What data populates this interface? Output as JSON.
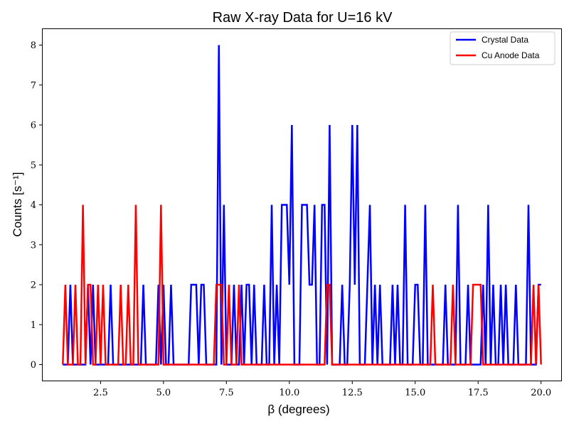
{
  "chart_data": {
    "type": "line",
    "title": "Raw X-ray Data for U=16 kV",
    "xlabel": "β (degrees)",
    "ylabel": "Counts [s⁻¹]",
    "xlim": [
      0.2,
      20.8
    ],
    "ylim": [
      -0.4,
      8.4
    ],
    "xticks": [
      2.5,
      5.0,
      7.5,
      10.0,
      12.5,
      15.0,
      17.5,
      20.0
    ],
    "xtick_labels": [
      "2.5",
      "5.0",
      "7.5",
      "10.0",
      "12.5",
      "15.0",
      "17.5",
      "20.0"
    ],
    "yticks": [
      0,
      1,
      2,
      3,
      4,
      5,
      6,
      7,
      8
    ],
    "ytick_labels": [
      "0",
      "1",
      "2",
      "3",
      "4",
      "5",
      "6",
      "7",
      "8"
    ],
    "grid": false,
    "legend_position": "top-right",
    "series": [
      {
        "name": "Crystal Data",
        "color": "#0000ff",
        "x": [
          1.0,
          1.1,
          1.2,
          1.3,
          1.4,
          1.5,
          1.6,
          1.7,
          1.8,
          1.9,
          2.0,
          2.1,
          2.2,
          2.3,
          2.4,
          2.5,
          2.6,
          2.7,
          2.8,
          2.9,
          3.0,
          3.1,
          3.2,
          3.3,
          3.4,
          3.5,
          3.6,
          3.7,
          3.8,
          3.9,
          4.0,
          4.1,
          4.2,
          4.3,
          4.4,
          4.5,
          4.6,
          4.7,
          4.8,
          4.9,
          5.0,
          5.1,
          5.2,
          5.3,
          5.4,
          5.5,
          5.6,
          5.7,
          5.8,
          5.9,
          6.0,
          6.1,
          6.2,
          6.3,
          6.4,
          6.5,
          6.6,
          6.7,
          6.8,
          6.9,
          7.0,
          7.1,
          7.2,
          7.3,
          7.4,
          7.5,
          7.6,
          7.7,
          7.8,
          7.9,
          8.0,
          8.1,
          8.2,
          8.3,
          8.4,
          8.5,
          8.6,
          8.7,
          8.8,
          8.9,
          9.0,
          9.1,
          9.2,
          9.3,
          9.4,
          9.5,
          9.6,
          9.7,
          9.8,
          9.9,
          10.0,
          10.1,
          10.2,
          10.3,
          10.4,
          10.5,
          10.6,
          10.7,
          10.8,
          10.9,
          11.0,
          11.1,
          11.2,
          11.3,
          11.4,
          11.5,
          11.6,
          11.7,
          11.8,
          11.9,
          12.0,
          12.1,
          12.2,
          12.3,
          12.4,
          12.5,
          12.6,
          12.7,
          12.8,
          12.9,
          13.0,
          13.1,
          13.2,
          13.3,
          13.4,
          13.5,
          13.6,
          13.7,
          13.8,
          13.9,
          14.0,
          14.1,
          14.2,
          14.3,
          14.4,
          14.5,
          14.6,
          14.7,
          14.8,
          14.9,
          15.0,
          15.1,
          15.2,
          15.3,
          15.4,
          15.5,
          15.6,
          15.7,
          15.8,
          15.9,
          16.0,
          16.1,
          16.2,
          16.3,
          16.4,
          16.5,
          16.6,
          16.7,
          16.8,
          16.9,
          17.0,
          17.1,
          17.2,
          17.3,
          17.4,
          17.5,
          17.6,
          17.7,
          17.8,
          17.9,
          18.0,
          18.1,
          18.2,
          18.3,
          18.4,
          18.5,
          18.6,
          18.7,
          18.8,
          18.9,
          19.0,
          19.1,
          19.2,
          19.3,
          19.4,
          19.5,
          19.6,
          19.7,
          19.8,
          19.9,
          20.0
        ],
        "y": [
          0,
          0,
          0,
          2,
          0,
          0,
          0,
          0,
          0,
          0,
          2,
          0,
          2,
          0,
          0,
          0,
          0,
          0,
          0,
          2,
          0,
          0,
          0,
          0,
          0,
          0,
          0,
          0,
          0,
          0,
          0,
          0,
          2,
          0,
          0,
          0,
          0,
          0,
          2,
          0,
          2,
          0,
          0,
          2,
          0,
          0,
          0,
          0,
          0,
          0,
          0,
          2,
          2,
          2,
          0,
          2,
          2,
          0,
          0,
          0,
          0,
          0,
          8,
          0,
          4,
          0,
          0,
          0,
          2,
          0,
          0,
          2,
          0,
          2,
          2,
          0,
          2,
          0,
          0,
          0,
          2,
          0,
          0,
          4,
          0,
          2,
          0,
          4,
          4,
          4,
          2,
          6,
          0,
          0,
          0,
          4,
          4,
          4,
          2,
          2,
          4,
          0,
          0,
          4,
          4,
          0,
          6,
          0,
          0,
          0,
          0,
          2,
          0,
          0,
          2,
          6,
          2,
          6,
          0,
          0,
          0,
          2,
          4,
          0,
          2,
          0,
          2,
          0,
          0,
          0,
          0,
          2,
          0,
          2,
          0,
          0,
          4,
          0,
          0,
          0,
          2,
          2,
          0,
          0,
          4,
          0,
          0,
          0,
          0,
          0,
          0,
          0,
          2,
          0,
          0,
          0,
          0,
          4,
          0,
          0,
          0,
          2,
          0,
          0,
          0,
          0,
          0,
          2,
          0,
          4,
          0,
          2,
          0,
          0,
          2,
          0,
          2,
          0,
          0,
          0,
          2,
          0,
          0,
          0,
          0,
          4,
          0,
          0,
          0,
          2,
          2
        ]
      },
      {
        "name": "Cu Anode Data",
        "color": "#ff0000",
        "x": [
          1.0,
          1.1,
          1.2,
          1.3,
          1.4,
          1.5,
          1.6,
          1.7,
          1.8,
          1.9,
          2.0,
          2.1,
          2.2,
          2.3,
          2.4,
          2.5,
          2.6,
          2.7,
          2.8,
          2.9,
          3.0,
          3.1,
          3.2,
          3.3,
          3.4,
          3.5,
          3.6,
          3.7,
          3.8,
          3.9,
          4.0,
          4.1,
          4.2,
          4.3,
          4.4,
          4.5,
          4.6,
          4.7,
          4.8,
          4.9,
          5.0,
          5.1,
          5.2,
          5.3,
          5.4,
          5.5,
          5.6,
          5.7,
          5.8,
          5.9,
          6.0,
          6.1,
          6.2,
          6.3,
          6.4,
          6.5,
          6.6,
          6.7,
          6.8,
          6.9,
          7.0,
          7.1,
          7.2,
          7.3,
          7.4,
          7.5,
          7.6,
          7.7,
          7.8,
          7.9,
          8.0,
          8.1,
          8.2,
          8.3,
          8.4,
          8.5,
          8.6,
          8.7,
          8.8,
          8.9,
          9.0,
          9.1,
          9.2,
          9.3,
          9.4,
          9.5,
          9.6,
          9.7,
          9.8,
          9.9,
          10.0,
          10.1,
          10.2,
          10.3,
          10.4,
          10.5,
          10.6,
          10.7,
          10.8,
          10.9,
          11.0,
          11.1,
          11.2,
          11.3,
          11.4,
          11.5,
          11.6,
          11.7,
          11.8,
          11.9,
          12.0,
          12.1,
          12.2,
          12.3,
          12.4,
          12.5,
          12.6,
          12.7,
          12.8,
          12.9,
          13.0,
          13.1,
          13.2,
          13.3,
          13.4,
          13.5,
          13.6,
          13.7,
          13.8,
          13.9,
          14.0,
          14.1,
          14.2,
          14.3,
          14.4,
          14.5,
          14.6,
          14.7,
          14.8,
          14.9,
          15.0,
          15.1,
          15.2,
          15.3,
          15.4,
          15.5,
          15.6,
          15.7,
          15.8,
          15.9,
          16.0,
          16.1,
          16.2,
          16.3,
          16.4,
          16.5,
          16.6,
          16.7,
          16.8,
          16.9,
          17.0,
          17.1,
          17.2,
          17.3,
          17.4,
          17.5,
          17.6,
          17.7,
          17.8,
          17.9,
          18.0,
          18.1,
          18.2,
          18.3,
          18.4,
          18.5,
          18.6,
          18.7,
          18.8,
          18.9,
          19.0,
          19.1,
          19.2,
          19.3,
          19.4,
          19.5,
          19.6,
          19.7,
          19.8,
          19.9,
          20.0
        ],
        "y": [
          0,
          2,
          0,
          0,
          0,
          2,
          0,
          0,
          4,
          0,
          2,
          2,
          0,
          0,
          2,
          0,
          2,
          0,
          0,
          0,
          0,
          0,
          0,
          2,
          0,
          0,
          2,
          0,
          0,
          4,
          0,
          0,
          0,
          0,
          0,
          0,
          0,
          0,
          0,
          4,
          0,
          0,
          0,
          0,
          0,
          0,
          0,
          0,
          0,
          0,
          0,
          0,
          0,
          0,
          0,
          0,
          0,
          0,
          0,
          0,
          0,
          2,
          2,
          2,
          0,
          0,
          2,
          0,
          0,
          0,
          2,
          0,
          0,
          0,
          0,
          0,
          0,
          0,
          0,
          0,
          0,
          0,
          0,
          0,
          0,
          0,
          0,
          0,
          0,
          0,
          0,
          0,
          0,
          0,
          0,
          0,
          0,
          0,
          0,
          0,
          0,
          0,
          0,
          0,
          0,
          2,
          2,
          0,
          0,
          0,
          0,
          0,
          0,
          0,
          0,
          0,
          0,
          0,
          0,
          0,
          0,
          0,
          0,
          0,
          0,
          0,
          0,
          0,
          0,
          0,
          0,
          0,
          0,
          0,
          0,
          0,
          0,
          0,
          0,
          0,
          0,
          0,
          0,
          0,
          0,
          0,
          0,
          2,
          0,
          0,
          0,
          0,
          0,
          0,
          0,
          2,
          0,
          0,
          0,
          0,
          0,
          0,
          0,
          2,
          2,
          2,
          2,
          0,
          0,
          0,
          0,
          0,
          0,
          0,
          0,
          0,
          0,
          0,
          0,
          0,
          0,
          0,
          0,
          0,
          0,
          0,
          0,
          2,
          0,
          2,
          0
        ]
      }
    ]
  }
}
